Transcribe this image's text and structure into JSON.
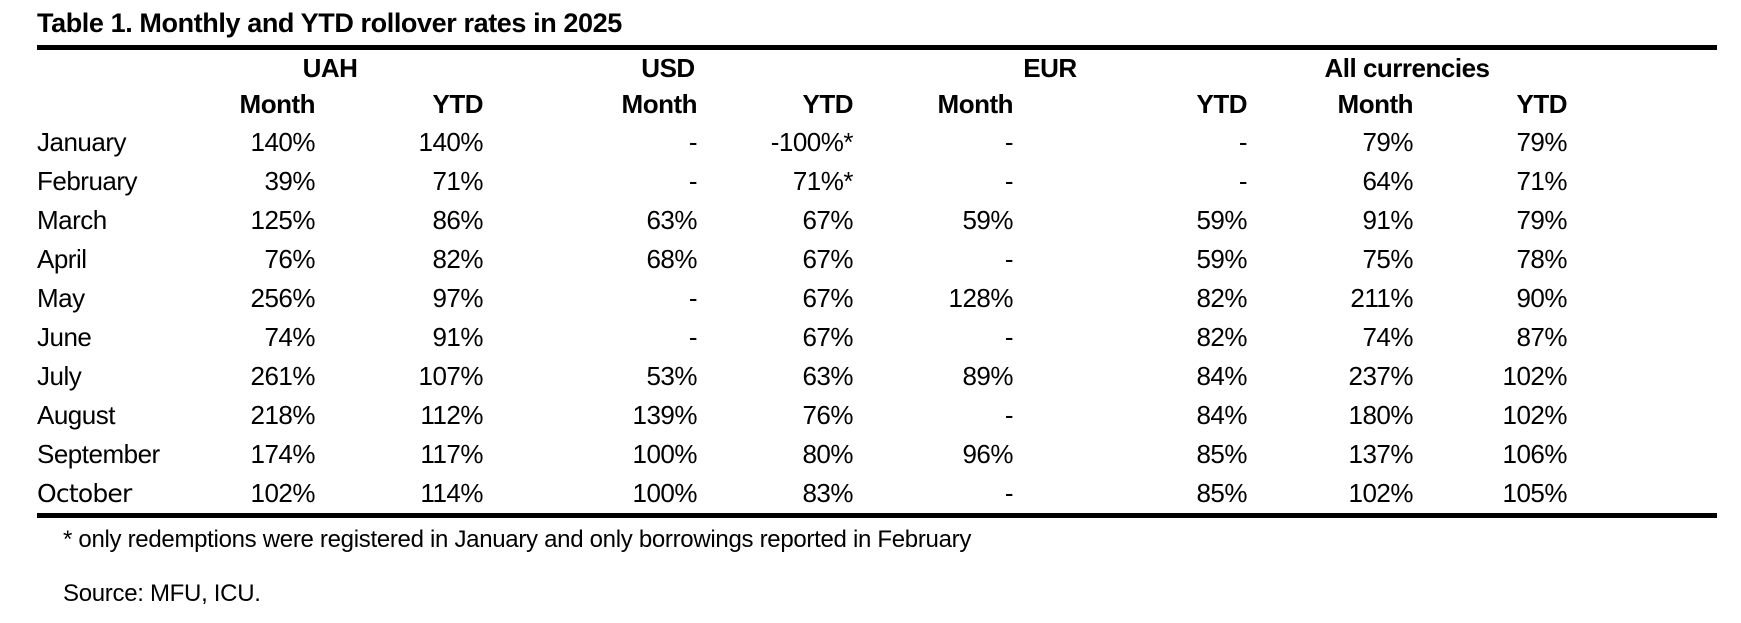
{
  "chart_data": {
    "type": "table",
    "title": "Table 1. Monthly and YTD rollover rates in 2025",
    "column_groups": [
      "UAH",
      "USD",
      "EUR",
      "All currencies"
    ],
    "subcolumns": [
      "Month",
      "YTD"
    ],
    "rows": [
      {
        "month": "January",
        "values": [
          "140%",
          "140%",
          "-",
          "-100%*",
          "-",
          "-",
          "79%",
          "79%"
        ]
      },
      {
        "month": "February",
        "values": [
          "39%",
          "71%",
          "-",
          "71%*",
          "-",
          "-",
          "64%",
          "71%"
        ]
      },
      {
        "month": "March",
        "values": [
          "125%",
          "86%",
          "63%",
          "67%",
          "59%",
          "59%",
          "91%",
          "79%"
        ]
      },
      {
        "month": "April",
        "values": [
          "76%",
          "82%",
          "68%",
          "67%",
          "-",
          "59%",
          "75%",
          "78%"
        ]
      },
      {
        "month": "May",
        "values": [
          "256%",
          "97%",
          "-",
          "67%",
          "128%",
          "82%",
          "211%",
          "90%"
        ]
      },
      {
        "month": "June",
        "values": [
          "74%",
          "91%",
          "-",
          "67%",
          "-",
          "82%",
          "74%",
          "87%"
        ]
      },
      {
        "month": "July",
        "values": [
          "261%",
          "107%",
          "53%",
          "63%",
          "89%",
          "84%",
          "237%",
          "102%"
        ]
      },
      {
        "month": "August",
        "values": [
          "218%",
          "112%",
          "139%",
          "76%",
          "-",
          "84%",
          "180%",
          "102%"
        ]
      },
      {
        "month": "September",
        "values": [
          "174%",
          "117%",
          "100%",
          "80%",
          "96%",
          "85%",
          "137%",
          "106%"
        ]
      },
      {
        "month": "October",
        "emphasis": true,
        "values": [
          "102%",
          "114%",
          "100%",
          "83%",
          "-",
          "85%",
          "102%",
          "105%"
        ]
      }
    ],
    "footnote": "* only redemptions were registered in January and only borrowings reported in February",
    "source": "Source: MFU, ICU.",
    "colors": {
      "text": "#000000",
      "rule": "#000000",
      "background": "#ffffff"
    }
  }
}
